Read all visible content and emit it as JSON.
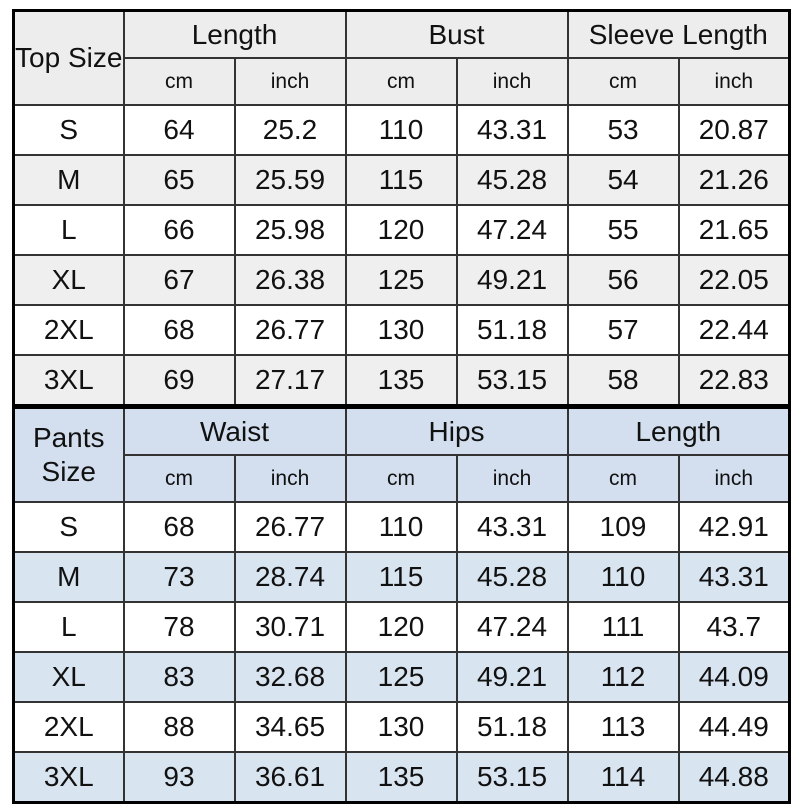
{
  "colors": {
    "gray_header": "#ededed",
    "gray_stripe": "#efefef",
    "blue_header": "#d3dfee",
    "blue_stripe": "#d9e4f1",
    "border_inner": "#333333",
    "border_outer": "#000000",
    "text": "#111111"
  },
  "chart_data": [
    {
      "type": "table",
      "size_label": "Top Size",
      "group_headers": [
        "Length",
        "Bust",
        "Sleeve Length"
      ],
      "unit_headers": [
        "cm",
        "inch",
        "cm",
        "inch",
        "cm",
        "inch"
      ],
      "rows": [
        {
          "size": "S",
          "values": [
            "64",
            "25.2",
            "110",
            "43.31",
            "53",
            "20.87"
          ]
        },
        {
          "size": "M",
          "values": [
            "65",
            "25.59",
            "115",
            "45.28",
            "54",
            "21.26"
          ]
        },
        {
          "size": "L",
          "values": [
            "66",
            "25.98",
            "120",
            "47.24",
            "55",
            "21.65"
          ]
        },
        {
          "size": "XL",
          "values": [
            "67",
            "26.38",
            "125",
            "49.21",
            "56",
            "22.05"
          ]
        },
        {
          "size": "2XL",
          "values": [
            "68",
            "26.77",
            "130",
            "51.18",
            "57",
            "22.44"
          ]
        },
        {
          "size": "3XL",
          "values": [
            "69",
            "27.17",
            "135",
            "53.15",
            "58",
            "22.83"
          ]
        }
      ]
    },
    {
      "type": "table",
      "size_label": "Pants Size",
      "group_headers": [
        "Waist",
        "Hips",
        "Length"
      ],
      "unit_headers": [
        "cm",
        "inch",
        "cm",
        "inch",
        "cm",
        "inch"
      ],
      "rows": [
        {
          "size": "S",
          "values": [
            "68",
            "26.77",
            "110",
            "43.31",
            "109",
            "42.91"
          ]
        },
        {
          "size": "M",
          "values": [
            "73",
            "28.74",
            "115",
            "45.28",
            "110",
            "43.31"
          ]
        },
        {
          "size": "L",
          "values": [
            "78",
            "30.71",
            "120",
            "47.24",
            "111",
            "43.7"
          ]
        },
        {
          "size": "XL",
          "values": [
            "83",
            "32.68",
            "125",
            "49.21",
            "112",
            "44.09"
          ]
        },
        {
          "size": "2XL",
          "values": [
            "88",
            "34.65",
            "130",
            "51.18",
            "113",
            "44.49"
          ]
        },
        {
          "size": "3XL",
          "values": [
            "93",
            "36.61",
            "135",
            "53.15",
            "114",
            "44.88"
          ]
        }
      ]
    }
  ]
}
